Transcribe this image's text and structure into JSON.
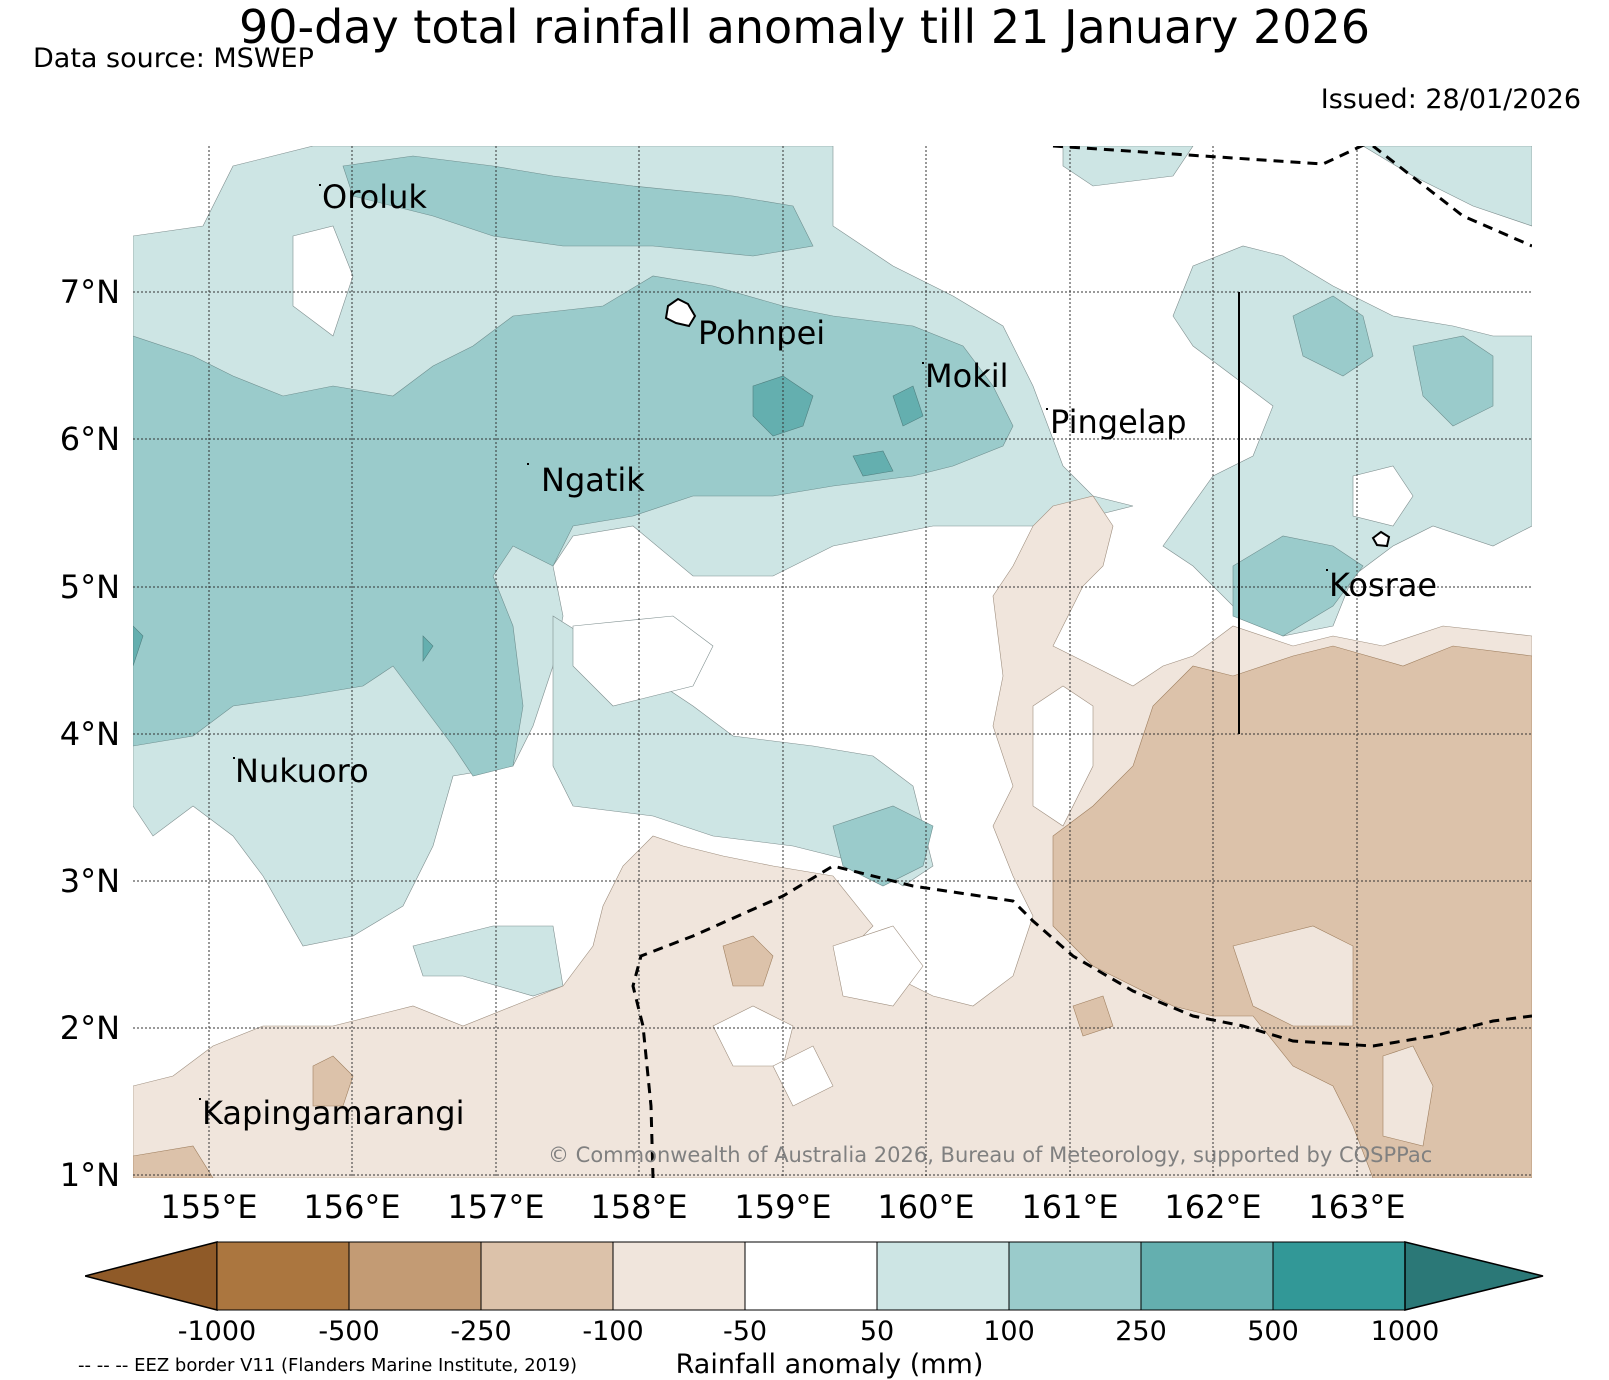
{
  "header": {
    "title": "90-day total rainfall anomaly till 21 January 2026",
    "data_source": "Data source: MSWEP",
    "issued": "Issued: 28/01/2026"
  },
  "map": {
    "latitude_labels": [
      "7°N",
      "6°N",
      "5°N",
      "4°N",
      "3°N",
      "2°N",
      "1°N"
    ],
    "longitude_labels": [
      "155°E",
      "156°E",
      "157°E",
      "158°E",
      "159°E",
      "160°E",
      "161°E",
      "162°E",
      "163°E"
    ],
    "places": [
      "Oroluk",
      "Pohnpei",
      "Mokil",
      "Pingelap",
      "Ngatik",
      "Kosrae",
      "Nukuoro",
      "Kapingamarangi"
    ],
    "copyright": "© Commonwealth of Australia 2026, Bureau of Meteorology, supported by COSPPac",
    "grid": true,
    "eez_borders": "dashed"
  },
  "legend": {
    "label": "Rainfall anomaly (mm)",
    "ticks": [
      "-1000",
      "-500",
      "-250",
      "-100",
      "-50",
      "50",
      "100",
      "250",
      "500",
      "1000"
    ],
    "colors": [
      "#8f5a28",
      "#ab763f",
      "#c39b74",
      "#dcc2aa",
      "#f0e5dc",
      "#ffffff",
      "#cde5e4",
      "#9acbcb",
      "#64afaf",
      "#329897",
      "#2b7877"
    ],
    "eez_note": "-- -- -- EEZ border V11 (Flanders Marine Institute, 2019)"
  }
}
